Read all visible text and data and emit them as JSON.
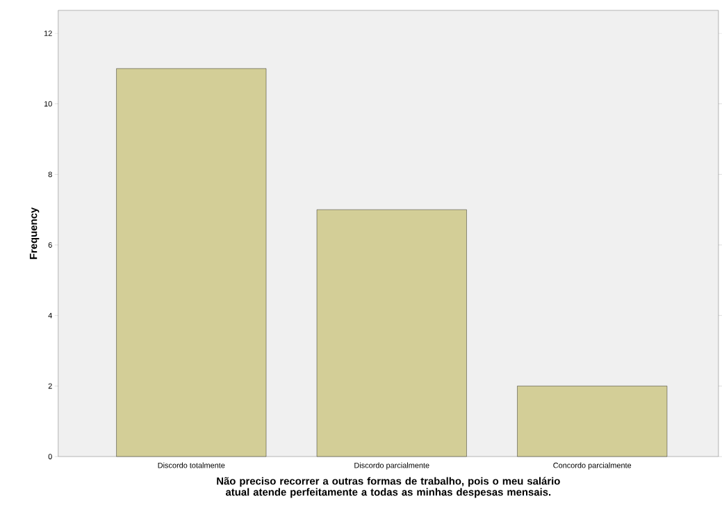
{
  "chart_data": {
    "type": "bar",
    "categories": [
      "Discordo totalmente",
      "Discordo parcialmente",
      "Concordo parcialmente"
    ],
    "values": [
      11,
      7,
      2
    ],
    "color": "#d3ce97",
    "xlabel": "Não preciso recorrer a outras formas de trabalho, pois o meu salário atual atende perfeitamente a todas as minhas despesas mensais.",
    "ylabel": "Frequency",
    "ylim": [
      0,
      12.65
    ],
    "yticks": [
      0,
      2,
      4,
      6,
      8,
      10,
      12
    ]
  }
}
